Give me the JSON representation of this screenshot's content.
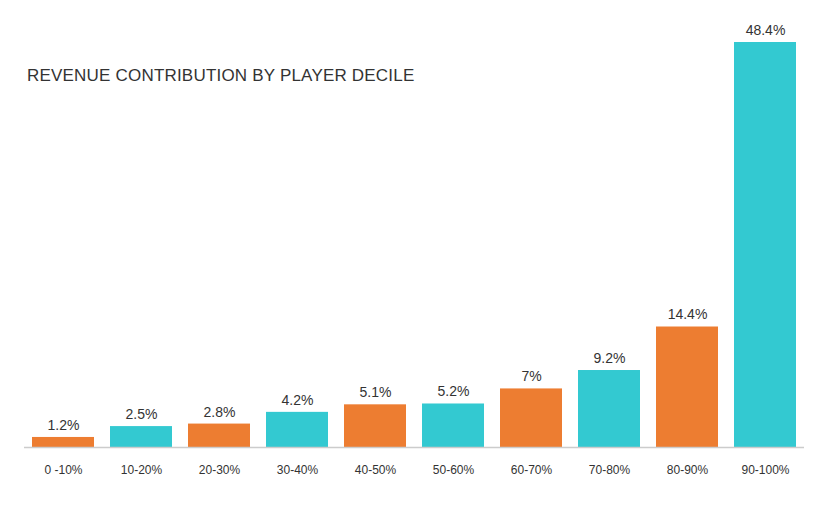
{
  "chart_data": {
    "type": "bar",
    "title": "REVENUE CONTRIBUTION BY PLAYER DECILE",
    "categories": [
      "0 -10%",
      "10-20%",
      "20-30%",
      "30-40%",
      "40-50%",
      "50-60%",
      "60-70%",
      "70-80%",
      "80-90%",
      "90-100%"
    ],
    "values": [
      1.2,
      2.5,
      2.8,
      4.2,
      5.1,
      5.2,
      7,
      9.2,
      14.4,
      48.4
    ],
    "value_labels": [
      "1.2%",
      "2.5%",
      "2.8%",
      "4.2%",
      "5.1%",
      "5.2%",
      "7%",
      "9.2%",
      "14.4%",
      "48.4%"
    ],
    "colors": [
      "#ED7D31",
      "#33C9D1",
      "#ED7D31",
      "#33C9D1",
      "#ED7D31",
      "#33C9D1",
      "#ED7D31",
      "#33C9D1",
      "#ED7D31",
      "#33C9D1"
    ],
    "ylim": [
      0,
      48.4
    ],
    "data_labels": true,
    "tick_labels": "x",
    "grid": false
  }
}
